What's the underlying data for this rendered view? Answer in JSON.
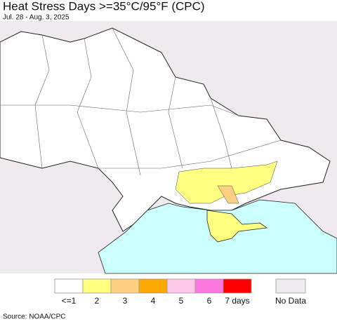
{
  "header": {
    "title": "Heat Stress Days >=35°C/95°F (CPC)",
    "subtitle": "Jul. 28 - Aug. 3, 2025"
  },
  "legend": {
    "items": [
      {
        "label": "<=1",
        "color": "#ffffff"
      },
      {
        "label": "2",
        "color": "#ffff80"
      },
      {
        "label": "3",
        "color": "#fcd080"
      },
      {
        "label": "4",
        "color": "#fca800"
      },
      {
        "label": "5",
        "color": "#fcc8e8"
      },
      {
        "label": "6",
        "color": "#fc78e0"
      },
      {
        "label": "7 days",
        "color": "#fc0000"
      }
    ],
    "no_data": {
      "label": "No Data",
      "color": "#eeeaee"
    }
  },
  "source": "Source: NOAA/CPC"
}
